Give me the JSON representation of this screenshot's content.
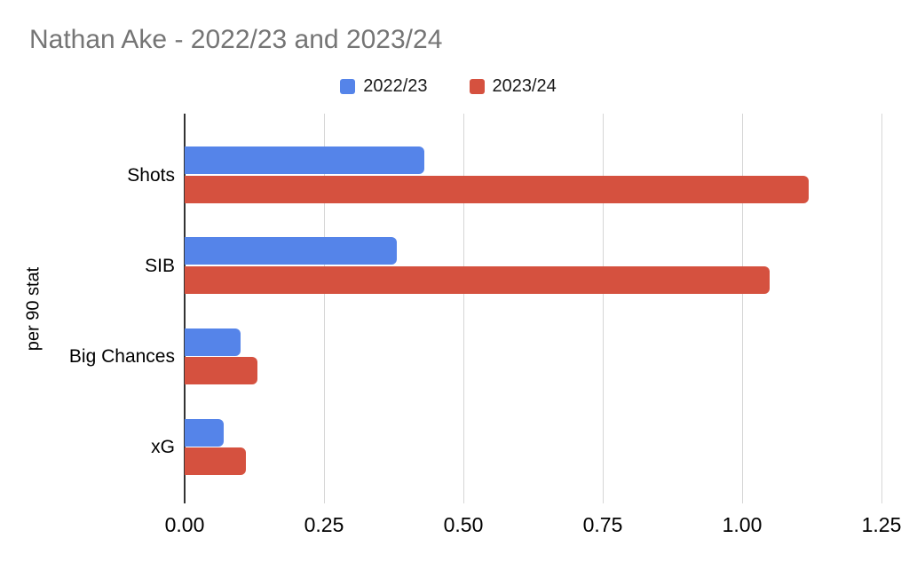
{
  "title": "Nathan Ake - 2022/23 and 2023/24",
  "chart_data": {
    "type": "bar",
    "orientation": "horizontal",
    "title": "Nathan Ake - 2022/23 and 2023/24",
    "categories": [
      "Shots",
      "SIB",
      "Big Chances",
      "xG"
    ],
    "series": [
      {
        "name": "2022/23",
        "color": "#5584e9",
        "values": [
          0.43,
          0.38,
          0.1,
          0.07
        ]
      },
      {
        "name": "2023/24",
        "color": "#d5513f",
        "values": [
          1.12,
          1.05,
          0.13,
          0.11
        ]
      }
    ],
    "xlabel": "",
    "ylabel": "per 90 stat",
    "x_ticks": [
      "0.00",
      "0.25",
      "0.50",
      "0.75",
      "1.00",
      "1.25"
    ],
    "x_tick_values": [
      0,
      0.25,
      0.5,
      0.75,
      1.0,
      1.25
    ],
    "xlim": [
      0,
      1.2771
    ],
    "grid": true,
    "legend_position": "top",
    "background_color": "#ffffff",
    "title_color": "#757575"
  }
}
